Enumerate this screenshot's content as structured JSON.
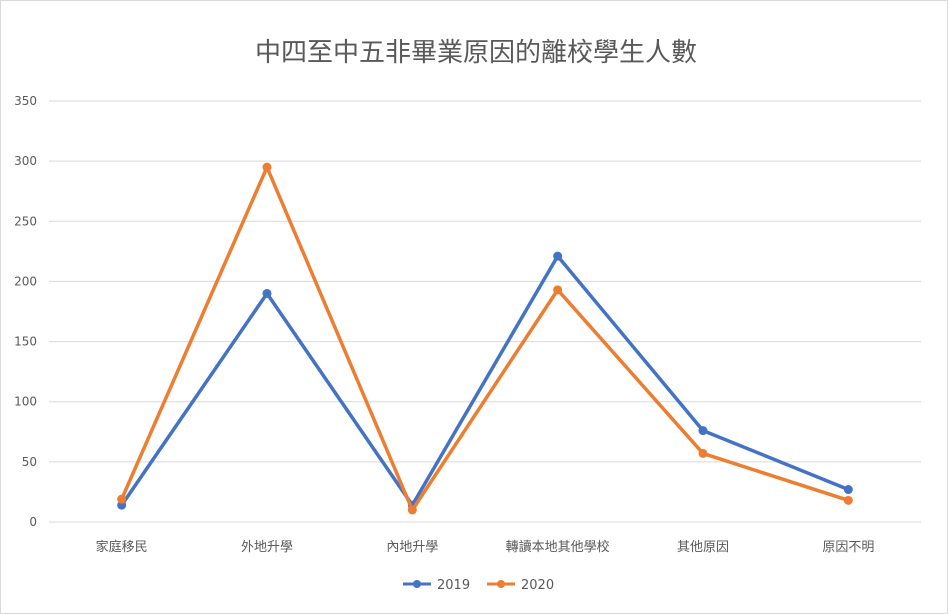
{
  "chart_data": {
    "type": "line",
    "title": "中四至中五非畢業原因的離校學生人數",
    "xlabel": "",
    "ylabel": "",
    "categories": [
      "家庭移民",
      "外地升學",
      "內地升學",
      "轉讀本地其他學校",
      "其他原因",
      "原因不明"
    ],
    "ylim": [
      0,
      350
    ],
    "yticks": [
      0,
      50,
      100,
      150,
      200,
      250,
      300,
      350
    ],
    "grid": true,
    "legend_position": "bottom",
    "series": [
      {
        "name": "2019",
        "color": "#4472c4",
        "values": [
          14,
          190,
          14,
          221,
          76,
          27
        ]
      },
      {
        "name": "2020",
        "color": "#ed7d31",
        "values": [
          19,
          295,
          10,
          193,
          57,
          18
        ]
      }
    ]
  }
}
